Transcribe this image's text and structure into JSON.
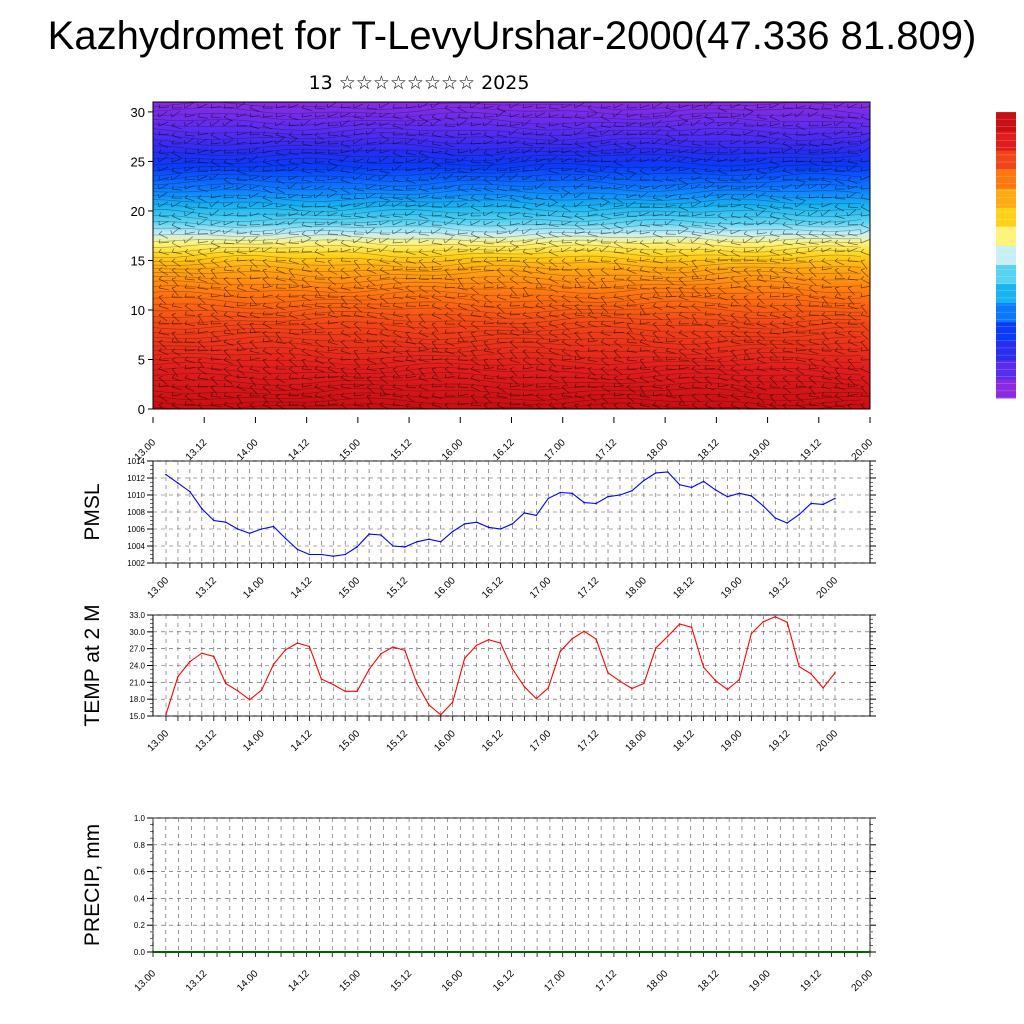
{
  "title": "Kazhydromet for T-LevyUrshar-2000(47.336 81.809)",
  "subtitle": "13 ☆☆☆☆☆☆☆☆ 2025",
  "chart_data": [
    {
      "type": "heatmap",
      "name": "vertical temperature cross-section with wind barbs",
      "x_tick_labels": [
        "13.00",
        "13.12",
        "14.00",
        "14.12",
        "15.00",
        "15.12",
        "16.00",
        "16.12",
        "17.00",
        "17.12",
        "18.00",
        "18.12",
        "19.00",
        "19.12",
        "20.00"
      ],
      "y_ticks": [
        0,
        5,
        10,
        15,
        20,
        25,
        30
      ],
      "ylim": [
        0,
        31
      ],
      "colorbar_colors": [
        "#8a2be2",
        "#5a2cf0",
        "#2a2cf0",
        "#0a3cf8",
        "#0b78ff",
        "#19b4f0",
        "#58d2f2",
        "#c8eef6",
        "#fff37a",
        "#ffd21a",
        "#ffaa14",
        "#ff780f",
        "#f14418",
        "#e01d1e",
        "#c80f14"
      ],
      "wind_barbs": true
    },
    {
      "type": "line",
      "ylabel": "PMSL",
      "ylim": [
        1002,
        1014
      ],
      "y_ticks": [
        1002,
        1004,
        1006,
        1008,
        1010,
        1012,
        1014
      ],
      "x_tick_labels": [
        "13.00",
        "13.12",
        "14.00",
        "14.12",
        "15.00",
        "15.12",
        "16.00",
        "16.12",
        "17.00",
        "17.12",
        "18.00",
        "18.12",
        "19.00",
        "19.12",
        "20.00"
      ],
      "color": "#0000ff",
      "values": [
        1012.4,
        1011.4,
        1010.4,
        1008.4,
        1007.0,
        1006.8,
        1006.0,
        1005.5,
        1006.0,
        1006.3,
        1004.9,
        1003.6,
        1003.0,
        1003.0,
        1002.8,
        1003.0,
        1003.9,
        1005.4,
        1005.3,
        1004.0,
        1003.9,
        1004.5,
        1004.8,
        1004.5,
        1005.7,
        1006.6,
        1006.8,
        1006.2,
        1006.0,
        1006.6,
        1007.9,
        1007.6,
        1009.6,
        1010.3,
        1010.2,
        1009.1,
        1009.0,
        1009.8,
        1010.0,
        1010.5,
        1011.7,
        1012.6,
        1012.7,
        1011.2,
        1010.9,
        1011.6,
        1010.6,
        1009.8,
        1010.2,
        1009.9,
        1008.7,
        1007.3,
        1006.7,
        1007.7,
        1009.0,
        1008.9,
        1009.6
      ]
    },
    {
      "type": "line",
      "ylabel": "TEMP at 2 M",
      "ylim": [
        15.0,
        33.0
      ],
      "y_ticks": [
        "15.0",
        "18.0",
        "21.0",
        "24.0",
        "27.0",
        "30.0",
        "33.0"
      ],
      "x_tick_labels": [
        "13.00",
        "13.12",
        "14.00",
        "14.12",
        "15.00",
        "15.12",
        "16.00",
        "16.12",
        "17.00",
        "17.12",
        "18.00",
        "18.12",
        "19.00",
        "19.12",
        "20.00"
      ],
      "color": "#ff0000",
      "values": [
        15.3,
        22.0,
        24.7,
        26.2,
        25.6,
        20.8,
        19.5,
        17.9,
        19.6,
        24.2,
        26.8,
        28.0,
        27.4,
        21.6,
        20.6,
        19.4,
        19.4,
        23.3,
        26.1,
        27.3,
        26.7,
        20.8,
        17.0,
        15.2,
        17.5,
        25.3,
        27.6,
        28.6,
        28.0,
        23.4,
        20.2,
        18.1,
        20.0,
        26.5,
        28.8,
        30.1,
        28.7,
        22.7,
        21.2,
        19.9,
        20.8,
        27.1,
        29.2,
        31.4,
        30.8,
        23.7,
        21.3,
        19.7,
        21.5,
        29.7,
        31.8,
        32.7,
        31.7,
        23.8,
        22.5,
        20.0,
        22.7
      ]
    },
    {
      "type": "line",
      "ylabel": "PRECIP, mm",
      "ylim": [
        0.0,
        1.0
      ],
      "y_ticks": [
        "0.0",
        "0.2",
        "0.4",
        "0.6",
        "0.8",
        "1.0"
      ],
      "x_tick_labels": [
        "13.00",
        "13.12",
        "14.00",
        "14.12",
        "15.00",
        "15.12",
        "16.00",
        "16.12",
        "17.00",
        "17.12",
        "18.00",
        "18.12",
        "19.00",
        "19.12",
        "20.00"
      ],
      "color": "#006400",
      "values": [
        0,
        0,
        0,
        0,
        0,
        0,
        0,
        0,
        0,
        0,
        0,
        0,
        0,
        0,
        0,
        0,
        0,
        0,
        0,
        0,
        0,
        0,
        0,
        0,
        0,
        0,
        0,
        0,
        0,
        0,
        0,
        0,
        0,
        0,
        0,
        0,
        0,
        0,
        0,
        0,
        0,
        0,
        0,
        0,
        0,
        0,
        0,
        0,
        0,
        0,
        0,
        0,
        0,
        0,
        0,
        0,
        0
      ]
    }
  ]
}
